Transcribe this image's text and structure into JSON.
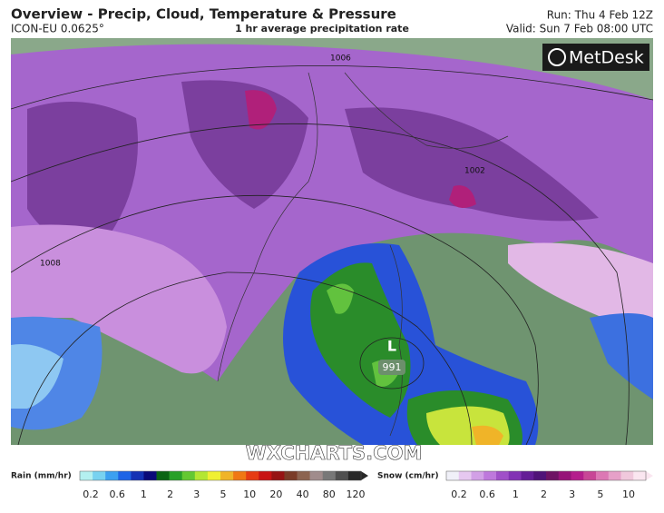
{
  "header": {
    "title": "Overview - Precip, Cloud, Temperature & Pressure",
    "model": "ICON-EU 0.0625°",
    "subtitle": "1 hr average precipitation rate",
    "run": "Run: Thu 4 Feb 12Z",
    "valid": "Valid: Sun 7 Feb 08:00 UTC"
  },
  "logo": "MetDesk",
  "watermark": "WXCHARTS.COM",
  "map": {
    "isobar_labels": [
      "1006",
      "1002",
      "1008"
    ],
    "low": {
      "symbol": "L",
      "pressure": "991"
    }
  },
  "legend": {
    "rain": {
      "label": "Rain (mm/hr)",
      "ticks": [
        "0.2",
        "0.6",
        "1",
        "2",
        "3",
        "5",
        "10",
        "20",
        "40",
        "80",
        "120"
      ],
      "colors": [
        "#b4f0f0",
        "#78d2f0",
        "#3ca0f0",
        "#1e64e6",
        "#1432b4",
        "#0a0a78",
        "#0a6414",
        "#28a028",
        "#64c832",
        "#b4e632",
        "#f0f032",
        "#f0b428",
        "#f07814",
        "#e63c14",
        "#c81414",
        "#961414",
        "#7a3c28",
        "#8c6450",
        "#a08c8c",
        "#787878",
        "#505050",
        "#282828"
      ]
    },
    "snow": {
      "label": "Snow (cm/hr)",
      "ticks": [
        "0.2",
        "0.6",
        "1",
        "2",
        "3",
        "5",
        "10"
      ],
      "colors": [
        "#f0f0f8",
        "#e6c8f0",
        "#d2a0e6",
        "#be78dc",
        "#a050c8",
        "#8232b4",
        "#641e96",
        "#501478",
        "#6e1464",
        "#961478",
        "#b41e8c",
        "#c84696",
        "#dc78b4",
        "#e6a0c8",
        "#f0c8dc",
        "#fae6f0"
      ]
    }
  }
}
